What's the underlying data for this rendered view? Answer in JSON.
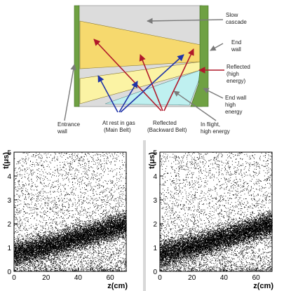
{
  "diagram": {
    "labels": {
      "slow_cascade": [
        "Slow",
        "cascade"
      ],
      "end_wall": [
        "End",
        "wall"
      ],
      "reflected_high": [
        "Reflected",
        "(high",
        "energy)"
      ],
      "end_wall_high": [
        "End wall",
        "high",
        "energy"
      ],
      "in_flight": [
        "In flight,",
        "high energy"
      ],
      "reflected_backward": [
        "Reflected",
        "(Backward Belt)"
      ],
      "at_rest": [
        "At rest in gas",
        "(Main Belt)"
      ],
      "entrance_wall": [
        "Entrance",
        "wall"
      ]
    },
    "colors": {
      "wall": "#6fa143",
      "slow_band": "#dcdcdc",
      "main_belt": "#f6d96e",
      "backward_belt": "#fbf3a4",
      "high_energy": "#bff0f0",
      "blue_arrow": "#1f33a8",
      "red_arrow": "#b0182a",
      "gray_arrow": "#7a7a7a"
    }
  },
  "chart_data": [
    {
      "type": "scatter",
      "title": "",
      "xlabel": "z(cm)",
      "ylabel": "t(μs)",
      "xlim": [
        0,
        70
      ],
      "ylim": [
        0,
        5
      ],
      "x_ticks": [
        "0",
        "20",
        "40",
        "60"
      ],
      "y_ticks": [
        "0",
        "1",
        "2",
        "3",
        "4",
        "5"
      ],
      "grid": false,
      "description_points": {
        "band_lower": [
          [
            0,
            0.0
          ],
          [
            30,
            0.6
          ],
          [
            55,
            1.1
          ],
          [
            68,
            1.3
          ]
        ],
        "band_upper": [
          [
            0,
            1.4
          ],
          [
            30,
            1.8
          ],
          [
            55,
            2.3
          ],
          [
            68,
            2.6
          ]
        ]
      }
    },
    {
      "type": "scatter",
      "title": "",
      "xlabel": "z(cm)",
      "ylabel": "t(μs)",
      "xlim": [
        0,
        70
      ],
      "ylim": [
        0,
        5
      ],
      "x_ticks": [
        "0",
        "20",
        "40",
        "60"
      ],
      "y_ticks": [
        "0",
        "1",
        "2",
        "3",
        "4",
        "5"
      ],
      "grid": false,
      "description_points": {
        "band_lower": [
          [
            0,
            0.0
          ],
          [
            30,
            0.6
          ],
          [
            55,
            1.1
          ],
          [
            68,
            1.3
          ]
        ],
        "band_upper": [
          [
            0,
            1.4
          ],
          [
            30,
            1.8
          ],
          [
            55,
            2.3
          ],
          [
            68,
            2.6
          ]
        ]
      }
    }
  ]
}
